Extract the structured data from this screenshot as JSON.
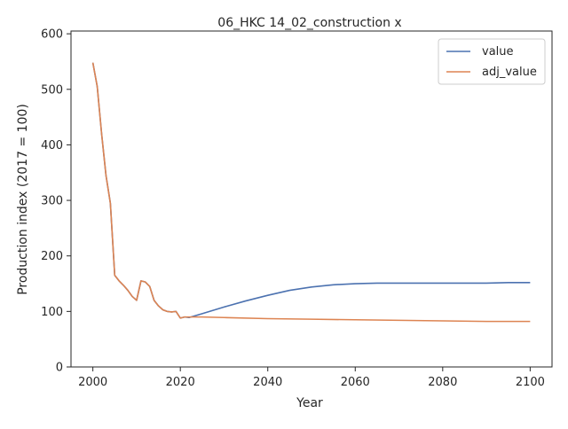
{
  "chart_data": {
    "type": "line",
    "title": "06_HKC 14_02_construction x",
    "xlabel": "Year",
    "ylabel": "Production index (2017 = 100)",
    "xlim": [
      1995,
      2105
    ],
    "ylim": [
      0,
      605
    ],
    "xticks": [
      2000,
      2020,
      2040,
      2060,
      2080,
      2100
    ],
    "yticks": [
      0,
      100,
      200,
      300,
      400,
      500,
      600
    ],
    "grid": false,
    "legend_position": "top-right",
    "series": [
      {
        "name": "value",
        "color": "#4c72b0",
        "points": [
          [
            2000,
            548
          ],
          [
            2001,
            505
          ],
          [
            2002,
            420
          ],
          [
            2003,
            345
          ],
          [
            2004,
            295
          ],
          [
            2005,
            165
          ],
          [
            2006,
            155
          ],
          [
            2007,
            147
          ],
          [
            2008,
            138
          ],
          [
            2009,
            127
          ],
          [
            2010,
            120
          ],
          [
            2011,
            155
          ],
          [
            2012,
            153
          ],
          [
            2013,
            145
          ],
          [
            2014,
            120
          ],
          [
            2015,
            110
          ],
          [
            2016,
            103
          ],
          [
            2017,
            100
          ],
          [
            2018,
            99
          ],
          [
            2019,
            100
          ],
          [
            2020,
            88
          ],
          [
            2021,
            90
          ],
          [
            2022,
            89
          ],
          [
            2025,
            96
          ],
          [
            2030,
            108
          ],
          [
            2035,
            119
          ],
          [
            2040,
            129
          ],
          [
            2045,
            138
          ],
          [
            2050,
            144
          ],
          [
            2055,
            148
          ],
          [
            2060,
            150
          ],
          [
            2065,
            151
          ],
          [
            2070,
            151
          ],
          [
            2075,
            151
          ],
          [
            2080,
            151
          ],
          [
            2085,
            151
          ],
          [
            2090,
            151
          ],
          [
            2095,
            152
          ],
          [
            2100,
            152
          ]
        ]
      },
      {
        "name": "adj_value",
        "color": "#dd8452",
        "points": [
          [
            2000,
            548
          ],
          [
            2001,
            505
          ],
          [
            2002,
            420
          ],
          [
            2003,
            345
          ],
          [
            2004,
            295
          ],
          [
            2005,
            165
          ],
          [
            2006,
            155
          ],
          [
            2007,
            147
          ],
          [
            2008,
            138
          ],
          [
            2009,
            127
          ],
          [
            2010,
            120
          ],
          [
            2011,
            155
          ],
          [
            2012,
            153
          ],
          [
            2013,
            145
          ],
          [
            2014,
            120
          ],
          [
            2015,
            110
          ],
          [
            2016,
            103
          ],
          [
            2017,
            100
          ],
          [
            2018,
            99
          ],
          [
            2019,
            100
          ],
          [
            2020,
            88
          ],
          [
            2021,
            90
          ],
          [
            2022,
            90
          ],
          [
            2025,
            90
          ],
          [
            2030,
            89
          ],
          [
            2040,
            87
          ],
          [
            2050,
            86
          ],
          [
            2060,
            85
          ],
          [
            2070,
            84
          ],
          [
            2080,
            83
          ],
          [
            2090,
            82
          ],
          [
            2100,
            82
          ]
        ]
      }
    ]
  }
}
